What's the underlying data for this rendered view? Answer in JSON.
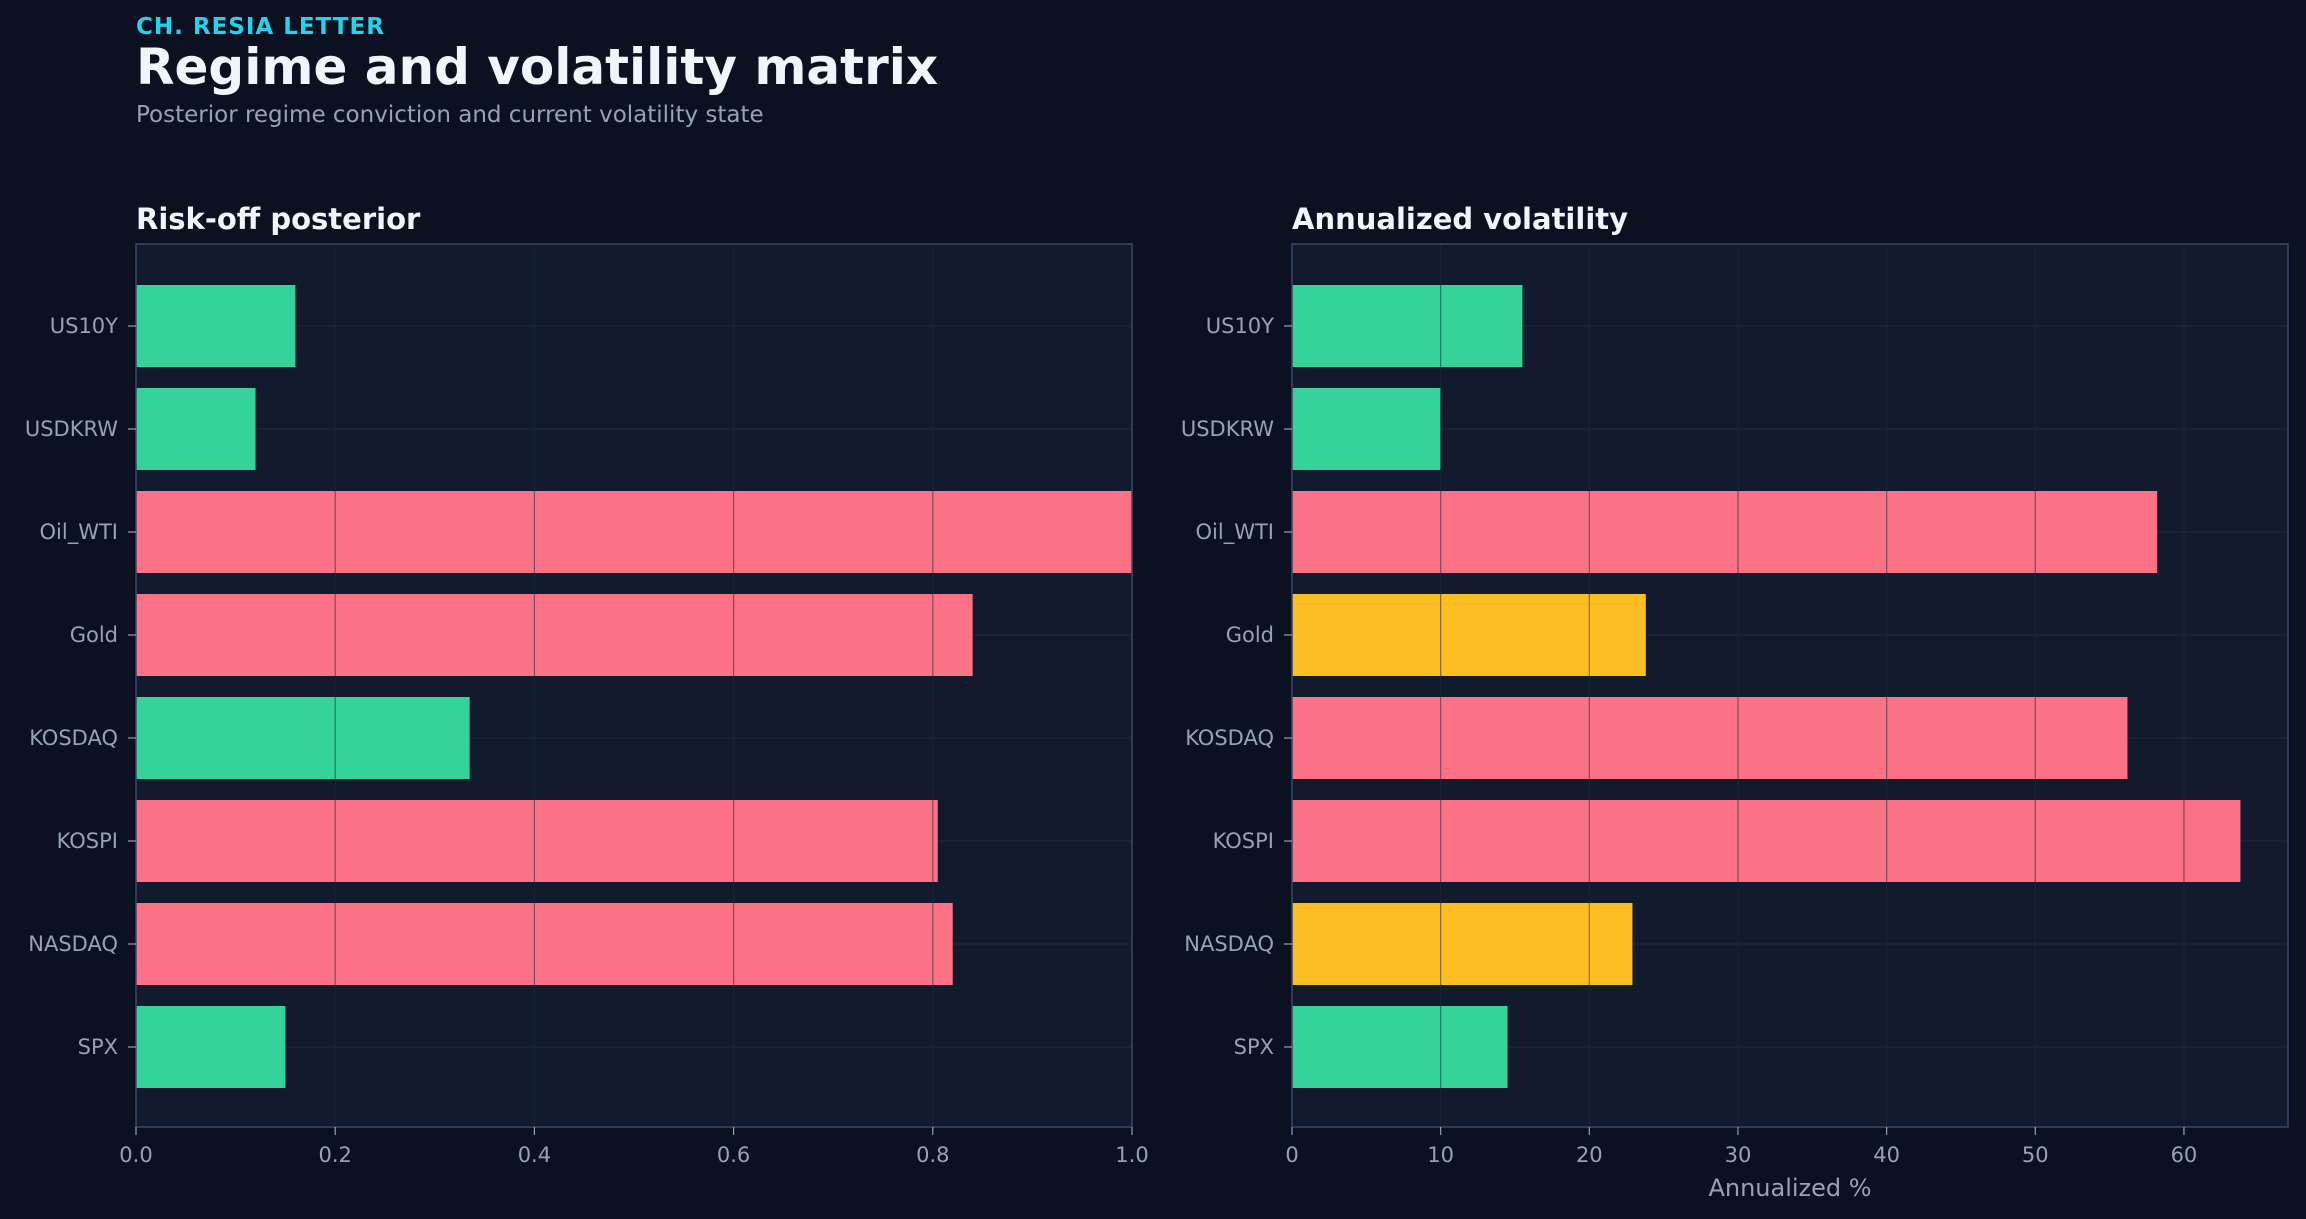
{
  "header": {
    "kicker": "CH. RESIA LETTER",
    "title": "Regime and volatility matrix",
    "subtitle": "Posterior regime conviction and current volatility state"
  },
  "colors": {
    "background": "#0b1120",
    "panel": "#121a2e",
    "grid": "#273248",
    "axis": "#3b4866",
    "text": "#f1f5f9",
    "muted": "#94a3b8",
    "accent": "#22d3ee",
    "green": "#34d399",
    "red": "#fb7185",
    "yellow": "#fbbf24"
  },
  "chart_data": [
    {
      "type": "bar",
      "orientation": "horizontal",
      "title": "Risk-off posterior",
      "xlabel": "",
      "categories": [
        "US10Y",
        "USDKRW",
        "Oil_WTI",
        "Gold",
        "KOSDAQ",
        "KOSPI",
        "NASDAQ",
        "SPX"
      ],
      "values": [
        0.16,
        0.12,
        1.0,
        0.84,
        0.335,
        0.805,
        0.82,
        0.15
      ],
      "bar_colors": [
        "green",
        "green",
        "red",
        "red",
        "green",
        "red",
        "red",
        "green"
      ],
      "xlim": [
        0,
        1.0
      ],
      "xticks": [
        0,
        0.2,
        0.4,
        0.6,
        0.8,
        1.0
      ],
      "xtick_labels": [
        "0.0",
        "0.2",
        "0.4",
        "0.6",
        "0.8",
        "1.0"
      ],
      "grid": true
    },
    {
      "type": "bar",
      "orientation": "horizontal",
      "title": "Annualized volatility",
      "xlabel": "Annualized %",
      "categories": [
        "US10Y",
        "USDKRW",
        "Oil_WTI",
        "Gold",
        "KOSDAQ",
        "KOSPI",
        "NASDAQ",
        "SPX"
      ],
      "values": [
        15.5,
        10.0,
        58.2,
        23.8,
        56.2,
        63.8,
        22.9,
        14.5
      ],
      "bar_colors": [
        "green",
        "green",
        "red",
        "yellow",
        "red",
        "red",
        "yellow",
        "green"
      ],
      "xlim": [
        0,
        67
      ],
      "xticks": [
        0,
        10,
        20,
        30,
        40,
        50,
        60
      ],
      "xtick_labels": [
        "0",
        "10",
        "20",
        "30",
        "40",
        "50",
        "60"
      ],
      "grid": true
    }
  ]
}
